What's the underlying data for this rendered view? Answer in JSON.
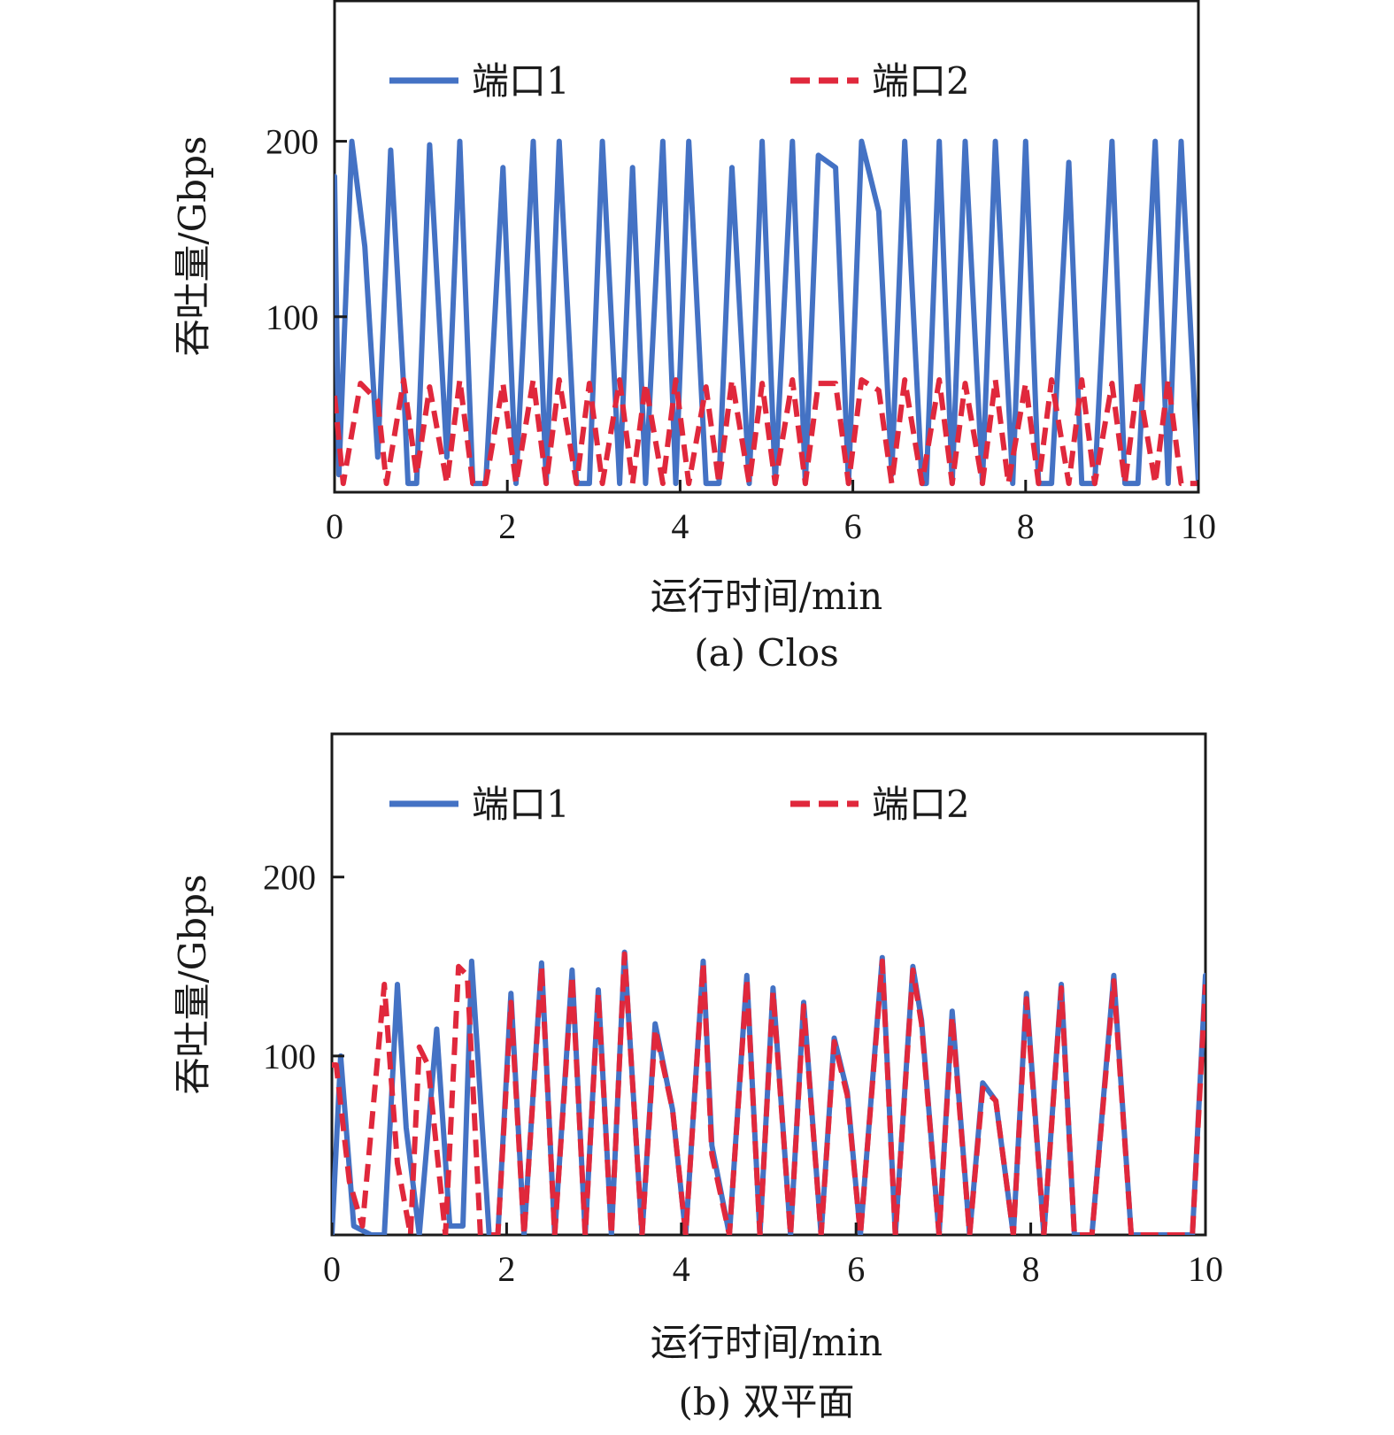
{
  "chart_data": [
    {
      "type": "line",
      "caption": "(a)  Clos",
      "xlabel": "运行时间/min",
      "ylabel": "吞吐量/Gbps",
      "xlim": [
        0,
        10
      ],
      "ylim": [
        0,
        280
      ],
      "xticks": [
        0,
        2,
        4,
        6,
        8,
        10
      ],
      "yticks": [
        100,
        200
      ],
      "grid": false,
      "legend_position": "top",
      "series": [
        {
          "name": "端口1",
          "style": "solid",
          "color": "#4472c4",
          "x": [
            0,
            0.05,
            0.2,
            0.35,
            0.5,
            0.65,
            0.8,
            0.85,
            0.95,
            1.1,
            1.3,
            1.45,
            1.6,
            1.75,
            1.95,
            2.1,
            2.3,
            2.45,
            2.6,
            2.8,
            2.95,
            3.1,
            3.3,
            3.45,
            3.6,
            3.8,
            3.95,
            4.1,
            4.3,
            4.45,
            4.6,
            4.8,
            4.95,
            5.1,
            5.3,
            5.45,
            5.6,
            5.8,
            5.95,
            6.1,
            6.3,
            6.45,
            6.6,
            6.8,
            6.85,
            7.0,
            7.15,
            7.3,
            7.5,
            7.65,
            7.85,
            8.0,
            8.15,
            8.3,
            8.5,
            8.65,
            8.8,
            9.0,
            9.15,
            9.3,
            9.5,
            9.65,
            9.8,
            10.0
          ],
          "y": [
            180,
            10,
            200,
            140,
            20,
            195,
            60,
            5,
            5,
            198,
            20,
            200,
            5,
            5,
            185,
            5,
            200,
            5,
            200,
            5,
            5,
            200,
            5,
            185,
            5,
            200,
            5,
            200,
            5,
            5,
            185,
            5,
            200,
            5,
            200,
            5,
            192,
            185,
            5,
            200,
            160,
            10,
            200,
            5,
            5,
            200,
            5,
            200,
            5,
            200,
            5,
            200,
            5,
            5,
            188,
            5,
            5,
            200,
            5,
            5,
            200,
            5,
            200,
            5
          ]
        },
        {
          "name": "端口2",
          "style": "dashed",
          "color": "#e0283c",
          "x": [
            0,
            0.1,
            0.3,
            0.5,
            0.6,
            0.8,
            0.95,
            1.1,
            1.3,
            1.45,
            1.6,
            1.75,
            1.95,
            2.1,
            2.3,
            2.45,
            2.6,
            2.8,
            2.95,
            3.1,
            3.3,
            3.45,
            3.6,
            3.8,
            3.95,
            4.1,
            4.3,
            4.45,
            4.6,
            4.8,
            4.95,
            5.1,
            5.3,
            5.45,
            5.6,
            5.8,
            5.95,
            6.1,
            6.3,
            6.45,
            6.6,
            6.8,
            7.0,
            7.15,
            7.3,
            7.5,
            7.65,
            7.8,
            8.0,
            8.15,
            8.3,
            8.5,
            8.65,
            8.8,
            9.0,
            9.15,
            9.3,
            9.5,
            9.65,
            9.8,
            10.0
          ],
          "y": [
            55,
            5,
            62,
            52,
            5,
            64,
            10,
            60,
            5,
            64,
            5,
            5,
            62,
            5,
            64,
            5,
            64,
            5,
            62,
            5,
            64,
            5,
            62,
            5,
            64,
            5,
            60,
            5,
            64,
            5,
            62,
            5,
            64,
            5,
            62,
            62,
            5,
            64,
            58,
            5,
            64,
            5,
            64,
            5,
            62,
            5,
            64,
            5,
            62,
            5,
            64,
            5,
            64,
            5,
            62,
            5,
            64,
            5,
            64,
            5,
            5
          ]
        }
      ]
    },
    {
      "type": "line",
      "caption": "(b)  双平面",
      "xlabel": "运行时间/min",
      "ylabel": "吞吐量/Gbps",
      "xlim": [
        0,
        10
      ],
      "ylim": [
        0,
        280
      ],
      "xticks": [
        0,
        2,
        4,
        6,
        8,
        10
      ],
      "yticks": [
        100,
        200
      ],
      "grid": false,
      "legend_position": "top",
      "series": [
        {
          "name": "端口1",
          "style": "solid",
          "color": "#4472c4",
          "x": [
            0,
            0.1,
            0.25,
            0.45,
            0.6,
            0.75,
            0.85,
            1.0,
            1.2,
            1.35,
            1.5,
            1.6,
            1.8,
            1.9,
            2.05,
            2.2,
            2.4,
            2.55,
            2.75,
            2.9,
            3.05,
            3.2,
            3.35,
            3.55,
            3.7,
            3.9,
            4.05,
            4.25,
            4.35,
            4.55,
            4.75,
            4.9,
            5.05,
            5.25,
            5.4,
            5.6,
            5.75,
            5.9,
            6.05,
            6.3,
            6.45,
            6.65,
            6.75,
            6.95,
            7.1,
            7.3,
            7.45,
            7.6,
            7.8,
            7.95,
            8.15,
            8.35,
            8.5,
            8.7,
            8.95,
            9.15,
            9.3,
            9.5,
            9.65,
            9.85,
            10.0
          ],
          "y": [
            0,
            100,
            5,
            0,
            0,
            140,
            60,
            0,
            115,
            5,
            5,
            153,
            0,
            0,
            135,
            0,
            152,
            0,
            148,
            0,
            137,
            0,
            158,
            0,
            118,
            70,
            0,
            153,
            50,
            0,
            145,
            0,
            138,
            0,
            130,
            0,
            110,
            80,
            0,
            155,
            0,
            150,
            120,
            0,
            125,
            0,
            85,
            75,
            0,
            135,
            0,
            140,
            0,
            0,
            145,
            0,
            0,
            0,
            0,
            0,
            145
          ]
        },
        {
          "name": "端口2",
          "style": "dashed",
          "color": "#e0283c",
          "x": [
            0,
            0.05,
            0.2,
            0.35,
            0.6,
            0.75,
            0.9,
            1.0,
            1.1,
            1.3,
            1.45,
            1.55,
            1.7,
            1.8,
            1.9,
            2.05,
            2.2,
            2.4,
            2.55,
            2.75,
            2.9,
            3.05,
            3.2,
            3.35,
            3.55,
            3.7,
            3.9,
            4.05,
            4.25,
            4.35,
            4.55,
            4.75,
            4.9,
            5.05,
            5.25,
            5.4,
            5.6,
            5.75,
            5.9,
            6.05,
            6.3,
            6.45,
            6.65,
            6.75,
            6.95,
            7.1,
            7.3,
            7.45,
            7.6,
            7.8,
            7.95,
            8.15,
            8.35,
            8.5,
            8.7,
            8.95,
            9.15,
            9.3,
            9.5,
            9.65,
            9.85,
            10.0
          ],
          "y": [
            95,
            95,
            30,
            5,
            140,
            40,
            0,
            105,
            95,
            0,
            150,
            145,
            0,
            0,
            0,
            130,
            0,
            150,
            0,
            145,
            0,
            135,
            0,
            157,
            0,
            115,
            70,
            0,
            152,
            45,
            0,
            143,
            0,
            136,
            0,
            128,
            0,
            108,
            78,
            0,
            153,
            0,
            148,
            118,
            0,
            122,
            0,
            82,
            75,
            0,
            132,
            0,
            138,
            0,
            0,
            142,
            0,
            0,
            0,
            0,
            0,
            140
          ]
        }
      ]
    }
  ]
}
